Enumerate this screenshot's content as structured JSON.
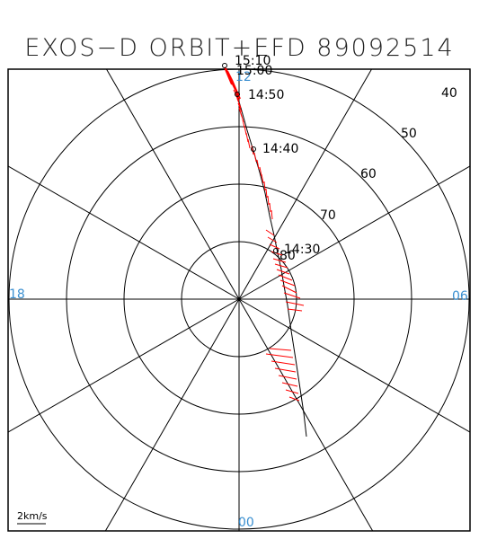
{
  "title": "EXOS−D ORBIT+EFD 89092514",
  "colors": {
    "grid": "#000000",
    "hour_labels": "#3a8fd0",
    "vectors": "#ff0000",
    "orbit": "#000000"
  },
  "latitude_labels": [
    "40",
    "50",
    "60",
    "70",
    "80"
  ],
  "hour_labels": {
    "top": "12",
    "left": "18",
    "right": "06",
    "bottom": "00"
  },
  "time_labels": [
    "15:10",
    "15:00",
    "14:50",
    "14:40",
    "14:30"
  ],
  "scale_label": "2km/s"
}
